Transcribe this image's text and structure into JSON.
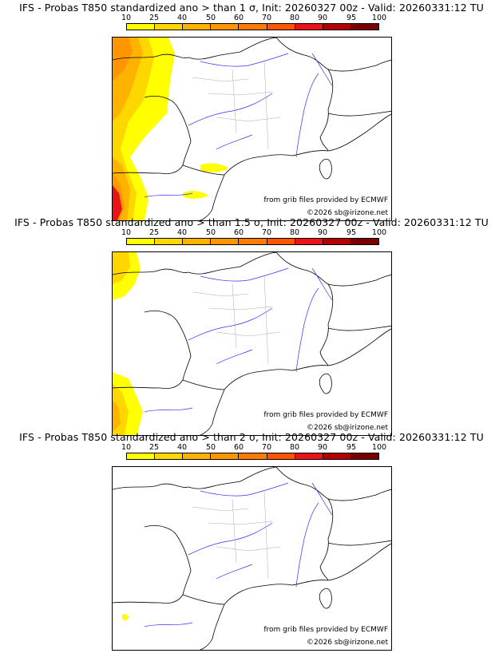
{
  "panels": [
    {
      "title": "IFS - Probas T850  standardized ano > than 1 σ, Init: 20260327 00z - Valid: 20260331:12 TU",
      "credit_source": "from grib files provided by ECMWF",
      "credit_copyright": "©2026 sb@irizone.net"
    },
    {
      "title": "IFS - Probas T850  standardized ano > than 1.5 σ, Init: 20260327 00z - Valid: 20260331:12 TU",
      "credit_source": "from grib files provided by ECMWF",
      "credit_copyright": "©2026 sb@irizone.net"
    },
    {
      "title": "IFS - Probas T850  standardized ano > than 2 σ, Init: 20260327 00z - Valid: 20260331:12 TU",
      "credit_source": "from grib files provided by ECMWF",
      "credit_copyright": "©2026 sb@irizone.net"
    }
  ],
  "colorbar": {
    "ticks": [
      "10",
      "25",
      "40",
      "50",
      "60",
      "70",
      "80",
      "90",
      "95",
      "100"
    ],
    "colors": [
      "#ffff00",
      "#ffd700",
      "#ffb300",
      "#ff9500",
      "#ff7a00",
      "#ff5500",
      "#e8141a",
      "#b50000",
      "#7a0000"
    ]
  },
  "colors": {
    "coast": "#000000",
    "rivers": "#3333ff",
    "borders": "#aaaaaa"
  }
}
